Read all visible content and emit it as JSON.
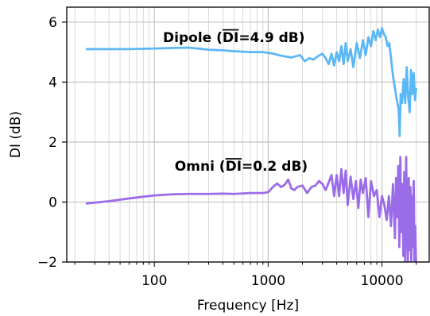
{
  "chart_data": {
    "type": "line",
    "xlabel": "Frequency [Hz]",
    "ylabel": "DI (dB)",
    "xscale": "log",
    "xlim": [
      17,
      26000
    ],
    "ylim": [
      -2,
      6.5
    ],
    "grid": true,
    "xticks": [
      {
        "value": 100,
        "label": "100"
      },
      {
        "value": 1000,
        "label": "1000"
      },
      {
        "value": 10000,
        "label": "10000"
      }
    ],
    "yticks": [
      {
        "value": -2,
        "label": "−2"
      },
      {
        "value": 0,
        "label": "0"
      },
      {
        "value": 2,
        "label": "2"
      },
      {
        "value": 4,
        "label": "4"
      },
      {
        "value": 6,
        "label": "6"
      }
    ],
    "annotations": [
      {
        "key": "dipole",
        "prefix": "Dipole (",
        "overline": "DI",
        "suffix": "=4.9 dB)",
        "x": 500,
        "y": 5.5
      },
      {
        "key": "omni",
        "prefix": "Omni (",
        "overline": "DI",
        "suffix": "=0.2 dB)",
        "x": 580,
        "y": 1.2
      }
    ],
    "series": [
      {
        "key": "dipole",
        "color": "#5bb8f5",
        "x": [
          25,
          40,
          60,
          100,
          150,
          200,
          300,
          400,
          500,
          700,
          900,
          1100,
          1300,
          1600,
          1900,
          2100,
          2300,
          2500,
          2700,
          3000,
          3200,
          3400,
          3600,
          3800,
          4000,
          4200,
          4400,
          4600,
          4800,
          5000,
          5300,
          5600,
          6000,
          6400,
          6800,
          7200,
          7600,
          8000,
          8400,
          8800,
          9200,
          9600,
          10000,
          10400,
          10800,
          11200,
          11600,
          12000,
          12500,
          13000,
          13500,
          14000,
          14300,
          14600,
          15000,
          15500,
          16000,
          16500,
          17000,
          17500,
          18000,
          18500,
          19000,
          19500,
          20000
        ],
        "y": [
          5.1,
          5.1,
          5.1,
          5.12,
          5.14,
          5.15,
          5.08,
          5.06,
          5.03,
          5.0,
          5.0,
          4.95,
          4.88,
          4.82,
          4.9,
          4.7,
          4.8,
          4.75,
          4.85,
          4.95,
          4.8,
          4.6,
          4.95,
          4.55,
          5.0,
          4.7,
          5.2,
          4.6,
          5.3,
          4.7,
          5.1,
          4.5,
          5.3,
          4.8,
          5.4,
          4.9,
          5.5,
          5.2,
          5.7,
          5.4,
          5.75,
          5.5,
          5.8,
          5.6,
          5.5,
          5.2,
          5.3,
          4.8,
          4.2,
          3.8,
          3.4,
          3.1,
          2.2,
          3.6,
          3.3,
          4.1,
          3.3,
          4.5,
          3.5,
          3.0,
          4.4,
          3.6,
          4.3,
          3.4,
          3.8
        ]
      },
      {
        "key": "omni",
        "color": "#9b6ce8",
        "x": [
          25,
          40,
          60,
          100,
          150,
          200,
          300,
          400,
          500,
          700,
          900,
          1000,
          1100,
          1200,
          1300,
          1400,
          1500,
          1600,
          1700,
          1800,
          2000,
          2200,
          2400,
          2600,
          2800,
          3000,
          3200,
          3400,
          3600,
          3800,
          4000,
          4200,
          4400,
          4600,
          4800,
          5000,
          5300,
          5600,
          5900,
          6200,
          6500,
          6800,
          7200,
          7600,
          8000,
          8500,
          9000,
          9500,
          10000,
          10500,
          11000,
          11500,
          12000,
          12500,
          13000,
          13300,
          13600,
          13900,
          14200,
          14500,
          14800,
          15100,
          15400,
          15700,
          16000,
          16300,
          16600,
          16900,
          17200,
          17500,
          17800,
          18100,
          18400,
          18700,
          19000,
          19300,
          19600,
          19900,
          20000
        ],
        "y": [
          -0.05,
          0.03,
          0.12,
          0.22,
          0.26,
          0.27,
          0.27,
          0.28,
          0.27,
          0.3,
          0.3,
          0.33,
          0.5,
          0.62,
          0.5,
          0.58,
          0.75,
          0.45,
          0.4,
          0.5,
          0.55,
          0.3,
          0.5,
          0.55,
          0.7,
          0.6,
          0.4,
          0.65,
          0.9,
          0.2,
          0.9,
          0.2,
          1.1,
          0.3,
          1.05,
          -0.1,
          0.85,
          0.1,
          0.7,
          -0.2,
          0.75,
          0.3,
          0.8,
          -0.5,
          0.7,
          0.2,
          0.4,
          -0.5,
          0.2,
          -0.1,
          -0.6,
          0.2,
          -0.8,
          0.6,
          -1.2,
          0.8,
          -0.5,
          1.2,
          -1.5,
          1.5,
          -1.0,
          0.6,
          -1.8,
          1.0,
          -2.0,
          1.5,
          -0.5,
          -2.0,
          0.8,
          -1.6,
          0.5,
          -2.0,
          0.2,
          -1.5,
          0.7,
          -2.0,
          -0.8,
          -2.0,
          -2.0
        ]
      }
    ]
  }
}
